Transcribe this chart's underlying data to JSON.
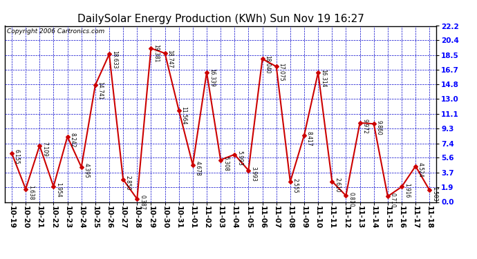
{
  "title": "DailySolar Energy Production (KWh) Sun Nov 19 16:27",
  "copyright": "Copyright 2006 Cartronics.com",
  "categories": [
    "10-19",
    "10-20",
    "10-21",
    "10-22",
    "10-23",
    "10-24",
    "10-25",
    "10-26",
    "10-27",
    "10-28",
    "10-29",
    "10-30",
    "10-31",
    "11-01",
    "11-02",
    "11-03",
    "11-04",
    "11-05",
    "11-06",
    "11-07",
    "11-08",
    "11-09",
    "11-10",
    "11-11",
    "11-12",
    "11-13",
    "11-14",
    "11-15",
    "11-16",
    "11-17",
    "11-18"
  ],
  "values": [
    6.155,
    1.638,
    7.109,
    1.954,
    8.242,
    4.395,
    14.741,
    18.633,
    2.85,
    0.387,
    19.381,
    18.747,
    11.564,
    4.678,
    16.339,
    5.308,
    5.993,
    3.993,
    18.04,
    17.075,
    2.555,
    8.417,
    16.314,
    2.61,
    0.81,
    9.972,
    9.86,
    0.71,
    1.916,
    4.524,
    1.503
  ],
  "ylim": [
    0.0,
    22.2
  ],
  "yticks": [
    0.0,
    1.9,
    3.7,
    5.6,
    7.4,
    9.3,
    11.1,
    13.0,
    14.8,
    16.7,
    18.5,
    20.4,
    22.2
  ],
  "line_color": "#cc0000",
  "marker_color": "#cc0000",
  "bg_color": "#ffffff",
  "grid_color": "#0000cc",
  "title_fontsize": 11,
  "copyright_fontsize": 6.5,
  "label_fontsize": 5.5,
  "tick_fontsize": 7.5
}
